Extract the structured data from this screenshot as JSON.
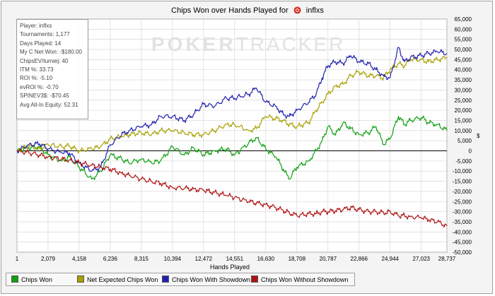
{
  "chart_data": {
    "type": "line",
    "title": "Chips Won over Hands Played for",
    "player_name": "inflxs",
    "xlabel": "Hands Played",
    "ylabel": "$",
    "x_ticks": [
      1,
      2079,
      4158,
      6236,
      8315,
      10394,
      12472,
      14551,
      16630,
      18708,
      20787,
      22866,
      24944,
      27023,
      28737
    ],
    "y_ticks": [
      -50000,
      -45000,
      -40000,
      -35000,
      -30000,
      -25000,
      -20000,
      -15000,
      -10000,
      -5000,
      0,
      5000,
      10000,
      15000,
      20000,
      25000,
      30000,
      35000,
      40000,
      45000,
      50000,
      55000,
      60000,
      65000
    ],
    "y_tick_labels": [
      "-50,000",
      "-45,000",
      "-40,000",
      "-35,000",
      "-30,000",
      "-25,000",
      "-20,000",
      "-15,000",
      "-10,000",
      "-5,000",
      "0",
      "5,000",
      "10,000",
      "15,000",
      "20,000",
      "25,000",
      "30,000",
      "35,000",
      "40,000",
      "45,000",
      "50,000",
      "55,000",
      "60,000",
      "65,000"
    ],
    "x_tick_labels": [
      "1",
      "2,079",
      "4,158",
      "6,236",
      "8,315",
      "10,394",
      "12,472",
      "14,551",
      "16,630",
      "18,708",
      "20,787",
      "22,866",
      "24,944",
      "27,023",
      "28,737"
    ],
    "xlim": [
      1,
      28737
    ],
    "ylim": [
      -50000,
      65000
    ],
    "y_axis_side": "right",
    "grid": true,
    "legend_position": "bottom",
    "series": [
      {
        "name": "Chips Won",
        "color": "#10a010",
        "points": [
          [
            1,
            0
          ],
          [
            800,
            1500
          ],
          [
            1500,
            2000
          ],
          [
            2079,
            -2000
          ],
          [
            3000,
            -5000
          ],
          [
            3500,
            -3000
          ],
          [
            4158,
            -8000
          ],
          [
            5000,
            -14000
          ],
          [
            5600,
            -10000
          ],
          [
            6236,
            -2000
          ],
          [
            7000,
            -4000
          ],
          [
            7500,
            -6000
          ],
          [
            8315,
            -4000
          ],
          [
            9000,
            -6000
          ],
          [
            9600,
            -5000
          ],
          [
            10394,
            2000
          ],
          [
            11200,
            -2000
          ],
          [
            11800,
            1500
          ],
          [
            12472,
            -2000
          ],
          [
            13200,
            0
          ],
          [
            14000,
            1000
          ],
          [
            14551,
            -2000
          ],
          [
            15500,
            4000
          ],
          [
            16000,
            6500
          ],
          [
            16630,
            1000
          ],
          [
            17300,
            -3000
          ],
          [
            17800,
            -9000
          ],
          [
            18200,
            -14000
          ],
          [
            18708,
            -8000
          ],
          [
            19500,
            -5000
          ],
          [
            20000,
            0
          ],
          [
            20400,
            5000
          ],
          [
            20787,
            12000
          ],
          [
            21300,
            8000
          ],
          [
            21800,
            14000
          ],
          [
            22300,
            11000
          ],
          [
            22866,
            8000
          ],
          [
            23500,
            9000
          ],
          [
            24000,
            12000
          ],
          [
            24500,
            3000
          ],
          [
            24944,
            6000
          ],
          [
            25500,
            17000
          ],
          [
            25900,
            13000
          ],
          [
            26300,
            15000
          ],
          [
            27023,
            16500
          ],
          [
            27500,
            14000
          ],
          [
            28100,
            13000
          ],
          [
            28737,
            10000
          ]
        ]
      },
      {
        "name": "Net Expected Chips Won",
        "color": "#a8a000",
        "points": [
          [
            1,
            0
          ],
          [
            800,
            2500
          ],
          [
            1500,
            1000
          ],
          [
            2079,
            3000
          ],
          [
            3000,
            2000
          ],
          [
            3500,
            2500
          ],
          [
            4158,
            0
          ],
          [
            5000,
            1000
          ],
          [
            5600,
            2000
          ],
          [
            6236,
            6000
          ],
          [
            7000,
            7000
          ],
          [
            7500,
            8000
          ],
          [
            8315,
            9000
          ],
          [
            9000,
            8000
          ],
          [
            9600,
            10000
          ],
          [
            10394,
            10000
          ],
          [
            11200,
            9000
          ],
          [
            11800,
            8000
          ],
          [
            12472,
            8000
          ],
          [
            13200,
            10000
          ],
          [
            14000,
            13000
          ],
          [
            14551,
            13000
          ],
          [
            15500,
            10000
          ],
          [
            16000,
            11000
          ],
          [
            16630,
            17000
          ],
          [
            17300,
            16000
          ],
          [
            17800,
            15000
          ],
          [
            18200,
            13000
          ],
          [
            18708,
            12000
          ],
          [
            19500,
            14000
          ],
          [
            20000,
            20000
          ],
          [
            20400,
            24000
          ],
          [
            20787,
            28000
          ],
          [
            21300,
            32000
          ],
          [
            21800,
            33000
          ],
          [
            22300,
            37000
          ],
          [
            22866,
            39000
          ],
          [
            23500,
            37000
          ],
          [
            24000,
            37000
          ],
          [
            24500,
            36000
          ],
          [
            24944,
            40000
          ],
          [
            25500,
            43000
          ],
          [
            25900,
            42000
          ],
          [
            26300,
            45000
          ],
          [
            27023,
            45000
          ],
          [
            27500,
            44000
          ],
          [
            28100,
            45000
          ],
          [
            28737,
            46000
          ]
        ]
      },
      {
        "name": "Chips Won With Showdown",
        "color": "#2020b0",
        "points": [
          [
            1,
            0
          ],
          [
            800,
            3000
          ],
          [
            1500,
            3500
          ],
          [
            2079,
            1000
          ],
          [
            3000,
            -1000
          ],
          [
            3500,
            -1000
          ],
          [
            4158,
            -6000
          ],
          [
            5000,
            -10000
          ],
          [
            5600,
            -8000
          ],
          [
            6236,
            3000
          ],
          [
            7000,
            8000
          ],
          [
            7500,
            10000
          ],
          [
            8315,
            12000
          ],
          [
            9000,
            13000
          ],
          [
            9600,
            17000
          ],
          [
            10394,
            17000
          ],
          [
            11200,
            15000
          ],
          [
            11800,
            18000
          ],
          [
            12472,
            23000
          ],
          [
            13200,
            22000
          ],
          [
            14000,
            26000
          ],
          [
            14551,
            26000
          ],
          [
            15500,
            28000
          ],
          [
            16000,
            31000
          ],
          [
            16630,
            24000
          ],
          [
            17300,
            22000
          ],
          [
            17800,
            18000
          ],
          [
            18200,
            17000
          ],
          [
            18708,
            20000
          ],
          [
            19500,
            24000
          ],
          [
            20000,
            28000
          ],
          [
            20400,
            36000
          ],
          [
            20787,
            42000
          ],
          [
            21300,
            44000
          ],
          [
            21800,
            43000
          ],
          [
            22300,
            47000
          ],
          [
            22866,
            44000
          ],
          [
            23500,
            43000
          ],
          [
            24000,
            40000
          ],
          [
            24500,
            37000
          ],
          [
            24944,
            36000
          ],
          [
            25500,
            51000
          ],
          [
            25900,
            44000
          ],
          [
            26300,
            46000
          ],
          [
            27023,
            47000
          ],
          [
            27500,
            48000
          ],
          [
            28100,
            49000
          ],
          [
            28737,
            48000
          ]
        ]
      },
      {
        "name": "Chips Won Without Showdown",
        "color": "#b01010",
        "points": [
          [
            1,
            0
          ],
          [
            800,
            -1000
          ],
          [
            1500,
            -2000
          ],
          [
            2079,
            -3000
          ],
          [
            3000,
            -4000
          ],
          [
            3500,
            -4500
          ],
          [
            4158,
            -6000
          ],
          [
            5000,
            -7000
          ],
          [
            5600,
            -8000
          ],
          [
            6236,
            -9000
          ],
          [
            7000,
            -11000
          ],
          [
            7500,
            -12000
          ],
          [
            8315,
            -14000
          ],
          [
            9000,
            -15000
          ],
          [
            9600,
            -16000
          ],
          [
            10394,
            -18000
          ],
          [
            11200,
            -18500
          ],
          [
            11800,
            -18800
          ],
          [
            12472,
            -19500
          ],
          [
            13200,
            -20500
          ],
          [
            14000,
            -22000
          ],
          [
            14551,
            -23000
          ],
          [
            15500,
            -25000
          ],
          [
            16000,
            -25800
          ],
          [
            16630,
            -26500
          ],
          [
            17300,
            -28000
          ],
          [
            17800,
            -29500
          ],
          [
            18200,
            -30500
          ],
          [
            18708,
            -32000
          ],
          [
            19500,
            -31000
          ],
          [
            20000,
            -31000
          ],
          [
            20400,
            -30000
          ],
          [
            20787,
            -30000
          ],
          [
            21300,
            -29500
          ],
          [
            21800,
            -29000
          ],
          [
            22300,
            -28000
          ],
          [
            22866,
            -29000
          ],
          [
            23500,
            -30000
          ],
          [
            24000,
            -30000
          ],
          [
            24500,
            -30500
          ],
          [
            24944,
            -30000
          ],
          [
            25500,
            -32000
          ],
          [
            25900,
            -32000
          ],
          [
            26300,
            -32500
          ],
          [
            27023,
            -33000
          ],
          [
            27500,
            -34000
          ],
          [
            28100,
            -35000
          ],
          [
            28737,
            -37000
          ]
        ]
      }
    ]
  },
  "stats": [
    "Player: inflxs",
    "Tournaments: 1,177",
    "Days Played: 14",
    "My C Net Won: -$180.00",
    "ChipsEV/turniej: 40",
    "ITM %: 33.73",
    "ROI %: -5.10",
    "evROI %: -0.70",
    "SPINEV3$: -$70.45",
    "Avg All-In Equity: 52.31"
  ],
  "watermark": {
    "part1": "POKER",
    "part2": "TRACKER"
  },
  "colors": {
    "grid": "#d0d0d0",
    "zero_line": "#000000",
    "panel": "#f4f4f4",
    "plot_bg": "#ffffff",
    "logo_red": "#d23a2a"
  }
}
